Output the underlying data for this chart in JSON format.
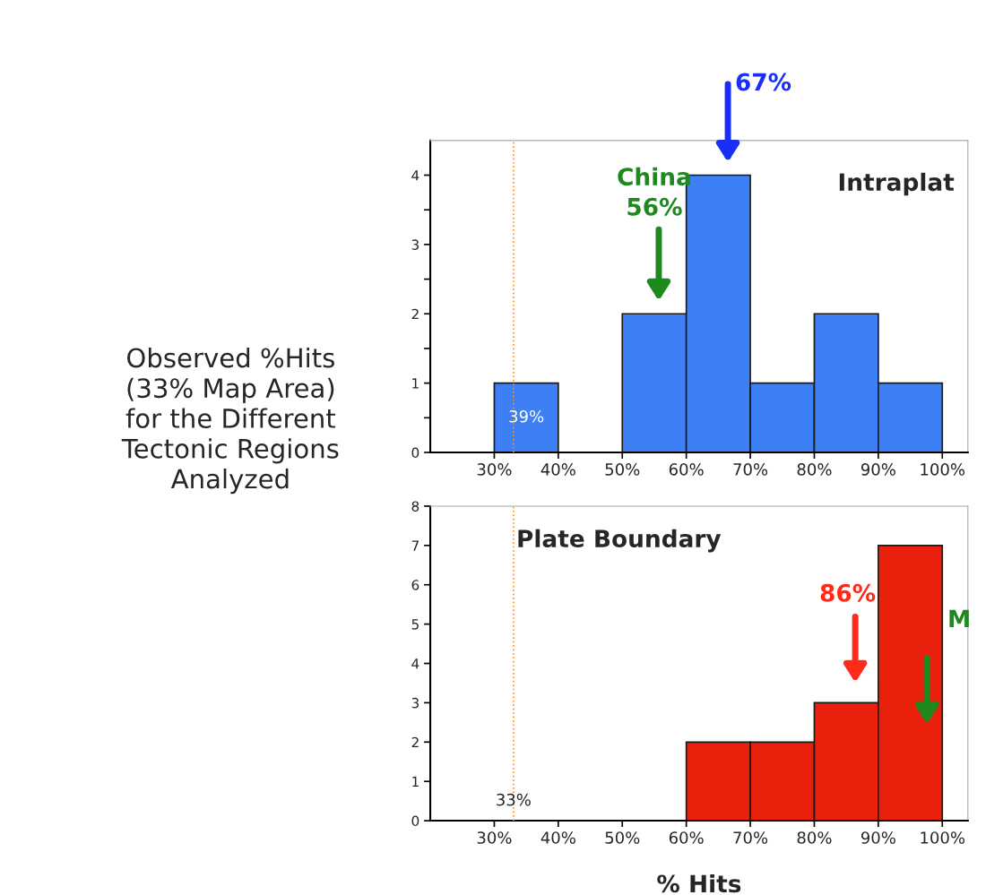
{
  "chart_data": [
    {
      "type": "histogram",
      "title": "Intraplat",
      "bins": [
        30,
        40,
        50,
        60,
        70,
        80,
        90,
        100
      ],
      "values": [
        1,
        0,
        2,
        4,
        1,
        2,
        1
      ],
      "color": "#3d80f5",
      "xlim": [
        20,
        104
      ],
      "ylim": [
        0,
        4.5
      ],
      "xticks": [
        {
          "value": 30,
          "label": "30%"
        },
        {
          "value": 40,
          "label": "40%"
        },
        {
          "value": 50,
          "label": "50%"
        },
        {
          "value": 60,
          "label": "60%"
        },
        {
          "value": 70,
          "label": "70%"
        },
        {
          "value": 80,
          "label": "80%"
        },
        {
          "value": 90,
          "label": "90%"
        },
        {
          "value": 100,
          "label": "100%"
        }
      ],
      "yticks": [
        0,
        {
          "value": 0.5,
          "label": null
        },
        1,
        {
          "value": 1.5,
          "label": null
        },
        2,
        {
          "value": 2.5,
          "label": null
        },
        3,
        {
          "value": 3.5,
          "label": null
        },
        4
      ],
      "ref_lines": [
        {
          "axis": "x",
          "value": 33,
          "label": null,
          "color": "#ff8c1a",
          "line_style": "dotted"
        }
      ],
      "annotations": [
        "67%",
        "China\n56%",
        "39%",
        "Observed %Hits\n(33% Map Area)\nfor the Different\nTectonic Regions\nAnalyzed"
      ]
    },
    {
      "type": "histogram",
      "title": "Plate Boundary",
      "xlabel": "% Hits",
      "bins": [
        60,
        70,
        80,
        90,
        100
      ],
      "values": [
        2,
        2,
        3,
        7
      ],
      "color": "#e8200c",
      "xlim": [
        20,
        104
      ],
      "ylim": [
        0,
        8
      ],
      "xticks": [
        {
          "value": 30,
          "label": "30%"
        },
        {
          "value": 40,
          "label": "40%"
        },
        {
          "value": 50,
          "label": "50%"
        },
        {
          "value": 60,
          "label": "60%"
        },
        {
          "value": 70,
          "label": "70%"
        },
        {
          "value": 80,
          "label": "80%"
        },
        {
          "value": 90,
          "label": "90%"
        },
        {
          "value": 100,
          "label": "100%"
        }
      ],
      "yticks": [
        0,
        1,
        2,
        3,
        4,
        5,
        6,
        7,
        8
      ],
      "ref_lines": [
        {
          "axis": "x",
          "value": 33,
          "label": "33%",
          "color": "#ff8c1a",
          "line_style": "dotted"
        }
      ],
      "annotations": [
        "86%",
        "M"
      ]
    }
  ]
}
